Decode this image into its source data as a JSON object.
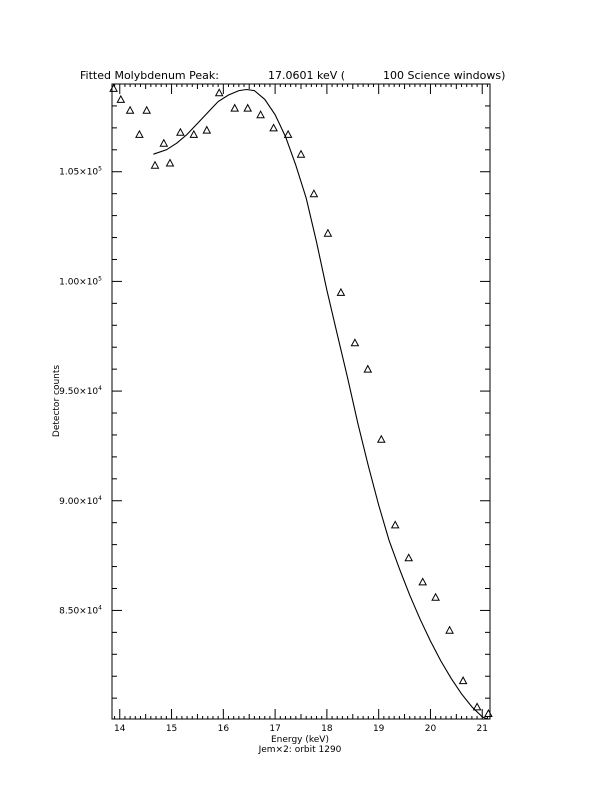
{
  "header": {
    "title_left": "Fitted Molybdenum Peak:",
    "title_value": "17.0601 keV (",
    "title_right": "100 Science windows)"
  },
  "footer": {
    "subtitle": "Jem×2: orbit 1290"
  },
  "chart_data": {
    "type": "scatter",
    "title": "Fitted Molybdenum Peak:     17.0601 keV (     100 Science windows)",
    "xlabel": "Energy (keV)",
    "ylabel": "Detector counts",
    "xlim": [
      13.85,
      21.15
    ],
    "ylim": [
      80050,
      109000
    ],
    "grid": false,
    "x_ticks": [
      {
        "value": 14,
        "label": "14"
      },
      {
        "value": 15,
        "label": "15"
      },
      {
        "value": 16,
        "label": "16"
      },
      {
        "value": 17,
        "label": "17"
      },
      {
        "value": 18,
        "label": "18"
      },
      {
        "value": 19,
        "label": "19"
      },
      {
        "value": 20,
        "label": "20"
      },
      {
        "value": 21,
        "label": "21"
      }
    ],
    "y_ticks": [
      {
        "value": 85000,
        "mantissa": "8.50×10",
        "exp": "4"
      },
      {
        "value": 90000,
        "mantissa": "9.00×10",
        "exp": "4"
      },
      {
        "value": 95000,
        "mantissa": "9.50×10",
        "exp": "4"
      },
      {
        "value": 100000,
        "mantissa": "1.00×10",
        "exp": "5"
      },
      {
        "value": 105000,
        "mantissa": "1.05×10",
        "exp": "5"
      }
    ],
    "series": [
      {
        "marker": "triangle",
        "x": [
          13.88,
          14.02,
          14.2,
          14.38,
          14.52,
          14.68,
          14.85,
          14.97,
          15.17,
          15.43,
          15.68,
          15.92,
          16.22,
          16.47,
          16.72,
          16.97,
          17.25,
          17.5,
          17.75,
          18.02,
          18.27,
          18.54,
          18.79,
          19.05,
          19.32,
          19.58,
          19.85,
          20.1,
          20.37,
          20.63,
          20.9,
          21.12
        ],
        "y": [
          108800,
          108300,
          107800,
          106700,
          107800,
          105300,
          106300,
          105400,
          106800,
          106700,
          106900,
          108600,
          107900,
          107900,
          107600,
          107000,
          106700,
          105800,
          104000,
          102200,
          99500,
          97200,
          96000,
          92800,
          88900,
          87400,
          86300,
          85600,
          84100,
          81800,
          80600,
          80300
        ]
      },
      {
        "marker": "line",
        "x": [
          14.65,
          14.9,
          15.1,
          15.3,
          15.5,
          15.7,
          15.9,
          16.1,
          16.3,
          16.45,
          16.6,
          16.8,
          17.0,
          17.2,
          17.4,
          17.6,
          17.8,
          18.0,
          18.2,
          18.4,
          18.6,
          18.8,
          19.0,
          19.2,
          19.4,
          19.6,
          19.8,
          20.0,
          20.2,
          20.4,
          20.6,
          20.8,
          21.0,
          21.1
        ],
        "y": [
          105800,
          106000,
          106300,
          106700,
          107200,
          107700,
          108200,
          108500,
          108700,
          108750,
          108700,
          108300,
          107600,
          106600,
          105300,
          103800,
          101800,
          99600,
          97600,
          95600,
          93500,
          91600,
          89800,
          88200,
          86900,
          85700,
          84600,
          83600,
          82700,
          81900,
          81200,
          80600,
          80150,
          80050
        ]
      }
    ]
  }
}
